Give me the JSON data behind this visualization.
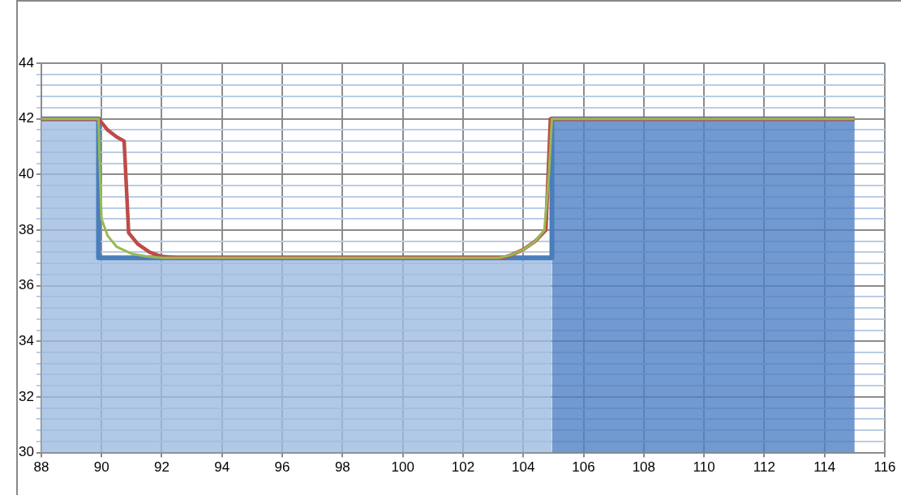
{
  "chart_data": {
    "type": "line",
    "xlim": [
      88,
      116
    ],
    "xticks": [
      88,
      90,
      92,
      94,
      96,
      98,
      100,
      102,
      104,
      106,
      108,
      110,
      112,
      114,
      116
    ],
    "ylim": [
      30,
      44
    ],
    "yticks": [
      30,
      {
        "value": 30.4,
        "label": null
      },
      {
        "value": 30.8,
        "label": null
      },
      {
        "value": 31.2,
        "label": null
      },
      {
        "value": 31.6,
        "label": null
      },
      32,
      {
        "value": 32.4,
        "label": null
      },
      {
        "value": 32.8,
        "label": null
      },
      {
        "value": 33.2,
        "label": null
      },
      {
        "value": 33.6,
        "label": null
      },
      34,
      {
        "value": 34.4,
        "label": null
      },
      {
        "value": 34.8,
        "label": null
      },
      {
        "value": 35.2,
        "label": null
      },
      {
        "value": 35.6,
        "label": null
      },
      36,
      {
        "value": 36.4,
        "label": null
      },
      {
        "value": 36.8,
        "label": null
      },
      {
        "value": 37.2,
        "label": null
      },
      {
        "value": 37.6,
        "label": null
      },
      38,
      {
        "value": 38.4,
        "label": null
      },
      {
        "value": 38.8,
        "label": null
      },
      {
        "value": 39.2,
        "label": null
      },
      {
        "value": 39.6,
        "label": null
      },
      40,
      {
        "value": 40.4,
        "label": null
      },
      {
        "value": 40.8,
        "label": null
      },
      {
        "value": 41.2,
        "label": null
      },
      {
        "value": 41.6,
        "label": null
      },
      42,
      {
        "value": 42.4,
        "label": null
      },
      {
        "value": 42.8,
        "label": null
      },
      {
        "value": 43.2,
        "label": null
      },
      {
        "value": 43.6,
        "label": null
      },
      44
    ],
    "grid": true,
    "legend": false,
    "marker": "none",
    "series": [
      {
        "type": "area",
        "color": "#9dbbe0",
        "x": [
          88,
          89.9,
          89.9,
          104.95
        ],
        "values": [
          42,
          42,
          37,
          37
        ]
      },
      {
        "type": "area",
        "color": "#4f7fc4",
        "x": [
          104.95,
          115
        ],
        "values": [
          42,
          42
        ]
      },
      {
        "type": "line",
        "color": "#4a7ebb",
        "x": [
          88,
          89.9,
          89.9,
          104.95,
          104.95,
          115
        ],
        "values": [
          42,
          42,
          37,
          37,
          42,
          42
        ]
      },
      {
        "type": "line",
        "color": "#be4b48",
        "x": [
          88,
          89.9,
          90.2,
          90.5,
          90.75,
          90.9,
          91.2,
          91.6,
          92,
          92.5,
          103.3,
          103.6,
          104,
          104.4,
          104.75,
          104.9,
          115
        ],
        "values": [
          42,
          42,
          41.6,
          41.35,
          41.2,
          37.9,
          37.5,
          37.2,
          37.05,
          37,
          37,
          37.1,
          37.3,
          37.6,
          38,
          42,
          42
        ]
      },
      {
        "type": "line",
        "color": "#98b954",
        "x": [
          88,
          89.9,
          89.95,
          90,
          90.2,
          90.5,
          91,
          91.5,
          92,
          103.2,
          103.6,
          104,
          104.4,
          104.7,
          104.85,
          104.95,
          115
        ],
        "values": [
          42,
          42,
          40,
          38.4,
          37.8,
          37.4,
          37.15,
          37.05,
          37,
          37,
          37.1,
          37.3,
          37.6,
          38,
          40,
          42,
          42
        ]
      }
    ]
  }
}
